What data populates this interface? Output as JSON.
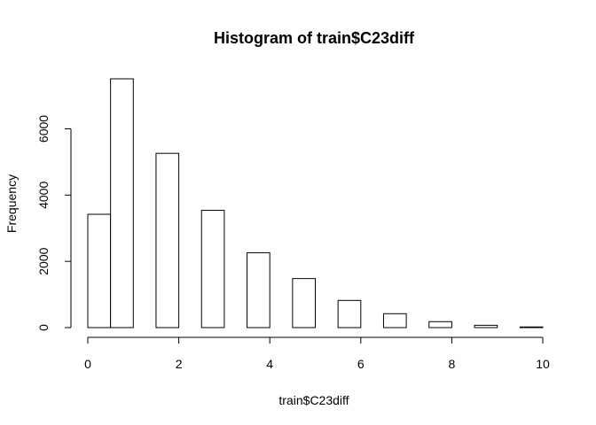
{
  "chart_data": {
    "type": "bar",
    "title": "Histogram of train$C23diff",
    "xlabel": "train$C23diff",
    "ylabel": "Frequency",
    "bins": [
      {
        "start": 0,
        "end": 0.5,
        "count": 3420
      },
      {
        "start": 0.5,
        "end": 1,
        "count": 7510
      },
      {
        "start": 1.5,
        "end": 2,
        "count": 5260
      },
      {
        "start": 2.5,
        "end": 3,
        "count": 3540
      },
      {
        "start": 3.5,
        "end": 4,
        "count": 2260
      },
      {
        "start": 4.5,
        "end": 5,
        "count": 1480
      },
      {
        "start": 5.5,
        "end": 6,
        "count": 820
      },
      {
        "start": 6.5,
        "end": 7,
        "count": 420
      },
      {
        "start": 7.5,
        "end": 8,
        "count": 180
      },
      {
        "start": 8.5,
        "end": 9,
        "count": 70
      },
      {
        "start": 9.5,
        "end": 10,
        "count": 20
      }
    ],
    "x_ticks": [
      0,
      2,
      4,
      6,
      8,
      10
    ],
    "x_tick_labels": [
      "0",
      "2",
      "4",
      "6",
      "8",
      "10"
    ],
    "y_ticks": [
      0,
      2000,
      4000,
      6000
    ],
    "y_tick_labels": [
      "0",
      "2000",
      "4000",
      "6000"
    ],
    "xlim": [
      0,
      10
    ],
    "ylim": [
      0,
      7510
    ],
    "grid": false,
    "bar_fill": "#ffffff",
    "bar_stroke": "#000000"
  }
}
